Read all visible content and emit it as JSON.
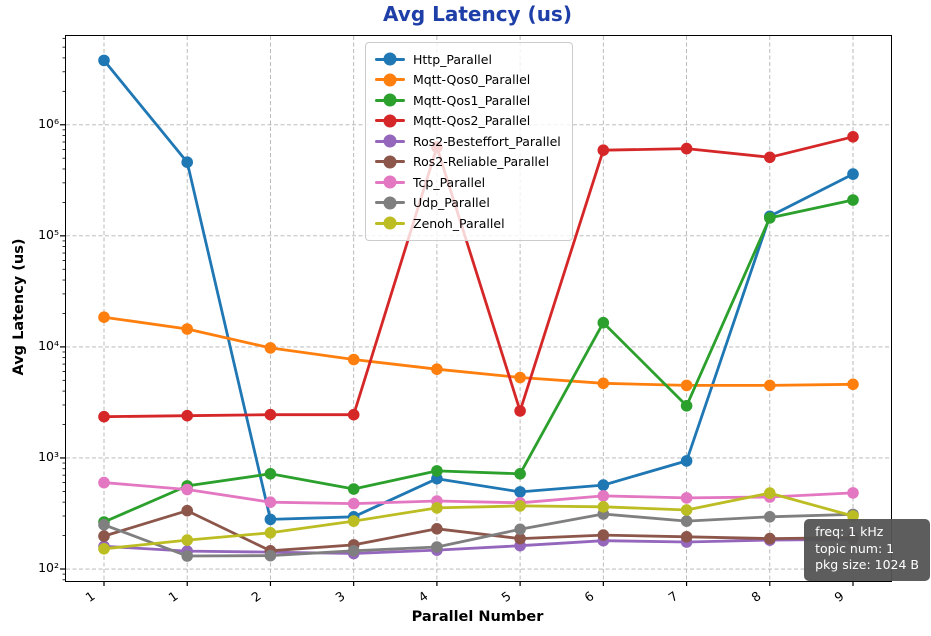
{
  "title": "Avg Latency  (us)",
  "title_color": "#1f3fa8",
  "grid_color": "#b3b3b3",
  "info_box": {
    "lines": [
      "freq: 1 kHz",
      "topic num: 1",
      "pkg size: 1024 B"
    ]
  },
  "chart_data": {
    "type": "line",
    "title": "Avg Latency  (us)",
    "xlabel": "Parallel Number",
    "ylabel": "Avg Latency (us)",
    "yscale": "log",
    "ylim": [
      78,
      6300000
    ],
    "grid": true,
    "legend_position": "upper center",
    "x_ticklabels": [
      "1",
      "1",
      "2",
      "3",
      "4",
      "5",
      "6",
      "7",
      "8",
      "9"
    ],
    "y_ticks": [
      100,
      1000,
      10000,
      100000,
      1000000
    ],
    "y_ticklabels": [
      "10²",
      "10³",
      "10⁴",
      "10⁵",
      "10⁶"
    ],
    "series": [
      {
        "name": "Http_Parallel",
        "color": "#1f77b4",
        "values": [
          3800000,
          460000,
          280,
          295,
          650,
          495,
          570,
          940,
          150000,
          360000
        ]
      },
      {
        "name": "Mqtt-Qos0_Parallel",
        "color": "#ff7f0e",
        "values": [
          18500,
          14500,
          9800,
          7700,
          6300,
          5300,
          4700,
          4500,
          4500,
          4600
        ]
      },
      {
        "name": "Mqtt-Qos1_Parallel",
        "color": "#2ca02c",
        "values": [
          265,
          560,
          720,
          525,
          765,
          720,
          16500,
          2950,
          145000,
          210000
        ]
      },
      {
        "name": "Mqtt-Qos2_Parallel",
        "color": "#d62728",
        "values": [
          2350,
          2400,
          2450,
          2450,
          630000,
          2650,
          590000,
          610000,
          510000,
          780000
        ]
      },
      {
        "name": "Ros2-Besteffort_Parallel",
        "color": "#9467bd",
        "values": [
          160,
          145,
          142,
          138,
          148,
          162,
          180,
          175,
          182,
          185
        ]
      },
      {
        "name": "Ros2-Reliable_Parallel",
        "color": "#8c564b",
        "values": [
          198,
          335,
          146,
          165,
          230,
          188,
          202,
          195,
          188,
          192
        ]
      },
      {
        "name": "Tcp_Parallel",
        "color": "#e377c2",
        "values": [
          600,
          520,
          400,
          388,
          410,
          395,
          455,
          437,
          445,
          485
        ]
      },
      {
        "name": "Udp_Parallel",
        "color": "#7f7f7f",
        "values": [
          250,
          131,
          132,
          146,
          158,
          228,
          313,
          270,
          295,
          310
        ]
      },
      {
        "name": "Zenoh_Parallel",
        "color": "#bcbd22",
        "values": [
          152,
          182,
          212,
          270,
          355,
          370,
          363,
          340,
          483,
          300
        ]
      }
    ]
  }
}
